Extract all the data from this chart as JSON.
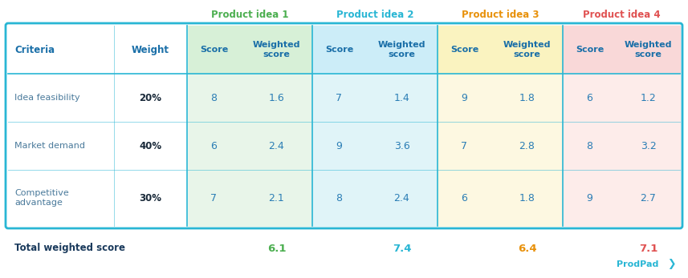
{
  "product_headers": [
    "Product idea 1",
    "Product idea 2",
    "Product idea 3",
    "Product idea 4"
  ],
  "product_header_colors": [
    "#4caf50",
    "#29b6d4",
    "#e8910a",
    "#e05252"
  ],
  "criteria": [
    "Idea feasibility",
    "Market demand",
    "Competitive\nadvantage"
  ],
  "weights": [
    "20%",
    "40%",
    "30%"
  ],
  "data": [
    [
      8,
      1.6,
      7,
      1.4,
      9,
      1.8,
      6,
      1.2
    ],
    [
      6,
      2.4,
      9,
      3.6,
      7,
      2.8,
      8,
      3.2
    ],
    [
      7,
      2.1,
      8,
      2.4,
      6,
      1.8,
      9,
      2.7
    ]
  ],
  "totals": [
    "6.1",
    "7.4",
    "6.4",
    "7.1"
  ],
  "total_label": "Total weighted score",
  "col_bg_colors": [
    "#e8f5e9",
    "#e8f5e9",
    "#e0f4f8",
    "#e0f4f8",
    "#fdf8e1",
    "#fdf8e1",
    "#fdecea",
    "#fdecea"
  ],
  "header_bg_colors": [
    "#d7f0d7",
    "#d7f0d7",
    "#ccedf8",
    "#ccedf8",
    "#faf3c0",
    "#faf3c0",
    "#f9d8d8",
    "#f9d8d8"
  ],
  "table_border_color": "#29b6d4",
  "header_text_color": "#1a6fa8",
  "data_text_color": "#2a7db5",
  "criteria_text_color": "#4a7a9b",
  "weight_text_color": "#1a2a3a",
  "total_text_color": "#1a3a5c",
  "bg_color": "#ffffff",
  "prodpad_color": "#29b6d4"
}
